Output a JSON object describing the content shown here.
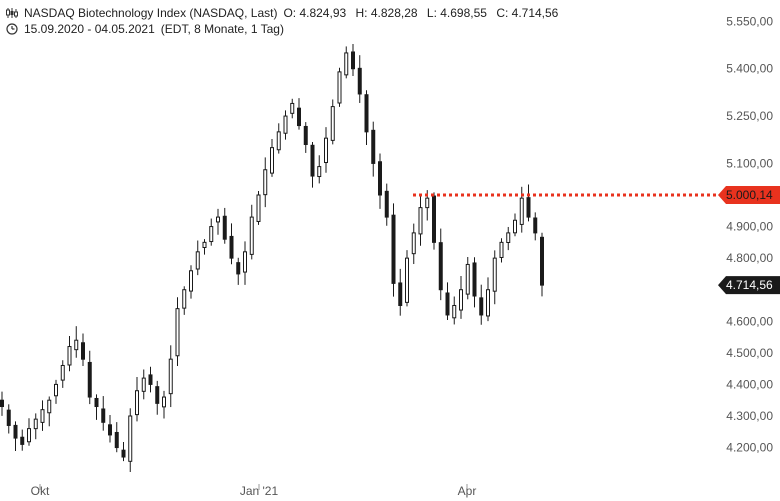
{
  "header": {
    "title": "NASDAQ Biotechnology Index (NASDAQ, Last)",
    "open": "O: 4.824,93",
    "high": "H: 4.828,28",
    "low": "L: 4.698,55",
    "close": "C: 4.714,56",
    "range": "15.09.2020 - 04.05.2021",
    "info": "(EDT, 8 Monate, 1 Tag)",
    "chart_icon": "candlestick-icon",
    "time_icon": "clock-icon"
  },
  "chart_data": {
    "type": "candlestick",
    "x_ticks": [
      "Okt",
      "Jan '21",
      "Apr"
    ],
    "y_ticks": [
      "5.550,00",
      "5.400,00",
      "5.250,00",
      "5.100,00",
      "4.900,00",
      "4.800,00",
      "4.600,00",
      "4.500,00",
      "4.400,00",
      "4.300,00",
      "4.200,00"
    ],
    "ylim": [
      4150,
      5600
    ],
    "resistance": {
      "value": 5000.14,
      "label": "5.000,14",
      "color": "#e8321e"
    },
    "last": {
      "value": 4714.56,
      "label": "4.714,56",
      "color": "#1a1a1a"
    },
    "closes_approx": [
      4330,
      4270,
      4230,
      4210,
      4260,
      4290,
      4320,
      4350,
      4400,
      4460,
      4520,
      4540,
      4480,
      4360,
      4330,
      4280,
      4240,
      4200,
      4170,
      4300,
      4380,
      4420,
      4400,
      4340,
      4360,
      4480,
      4640,
      4700,
      4760,
      4820,
      4850,
      4900,
      4930,
      4860,
      4800,
      4750,
      4820,
      4930,
      5000,
      5080,
      5150,
      5200,
      5250,
      5290,
      5220,
      5160,
      5060,
      5090,
      5180,
      5280,
      5390,
      5450,
      5400,
      5320,
      5200,
      5100,
      5000,
      4930,
      4720,
      4650,
      4800,
      4880,
      4960,
      4990,
      4850,
      4700,
      4620,
      4650,
      4700,
      4780,
      4680,
      4620,
      4700,
      4800,
      4850,
      4880,
      4920,
      4990,
      4930,
      4880,
      4714.56
    ]
  }
}
